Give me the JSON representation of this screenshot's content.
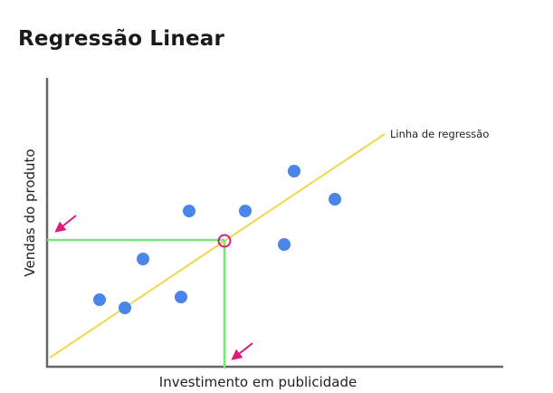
{
  "title": "Regressão Linear",
  "labels": {
    "x_axis": "Investimento em publicidade",
    "y_axis": "Vendas do produto",
    "regression_line": "Linha de regressão"
  },
  "colors": {
    "points": "#4a86e8",
    "regression": "#f2d64b",
    "guides": "#6ef06e",
    "highlight": "#e0197d",
    "axis": "#666666",
    "text": "#1a1a1a"
  },
  "icons": {
    "y_pointer": "arrow-icon",
    "x_pointer": "arrow-icon"
  }
}
